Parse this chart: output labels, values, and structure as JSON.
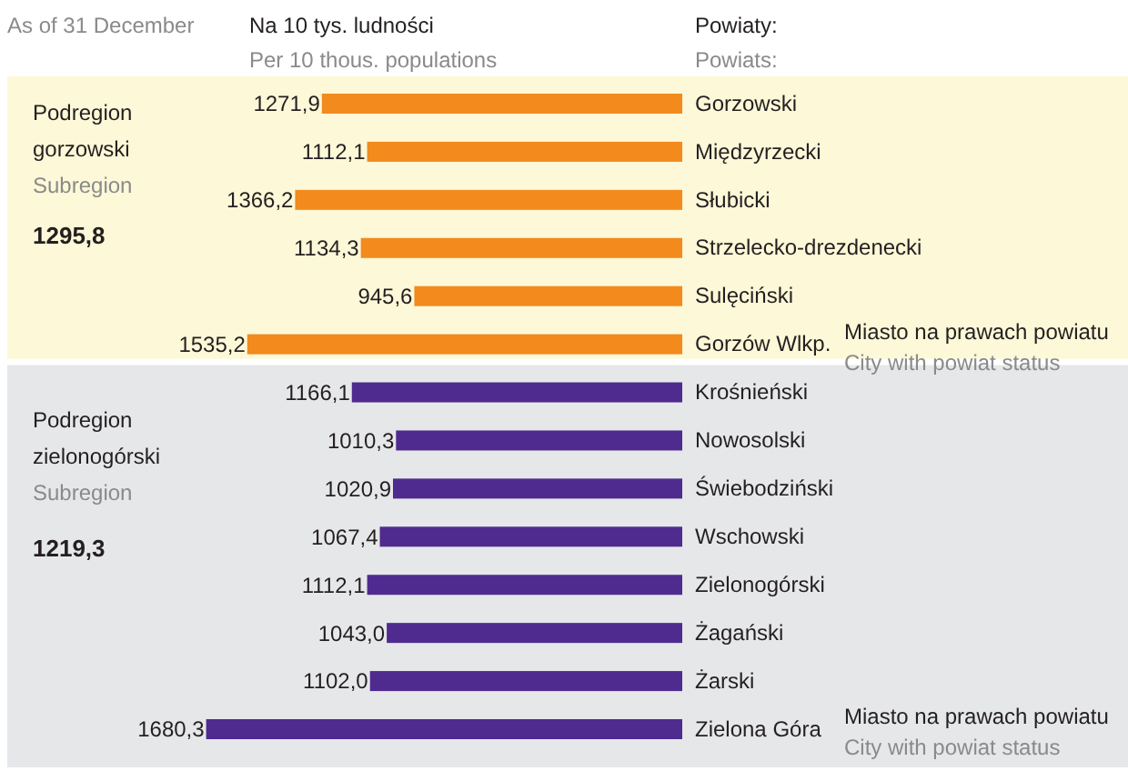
{
  "chart_data": {
    "type": "bar",
    "orientation": "horizontal",
    "xlabel": "Na 10 tys. ludności",
    "ylabel": "Powiaty:",
    "categories": [
      "Gorzowski",
      "Międzyrzecki",
      "Słubicki",
      "Strzelecko-drezdenecki",
      "Sulęciński",
      "Gorzów Wlkp.",
      "Krośnieński",
      "Nowosolski",
      "Świebodziński",
      "Wschowski",
      "Zielonogórski",
      "Żagański",
      "Żarski",
      "Zielona Góra"
    ],
    "values": [
      1271.9,
      1112.1,
      1366.2,
      1134.3,
      945.6,
      1535.2,
      1166.1,
      1010.3,
      1020.9,
      1067.4,
      1112.1,
      1043.0,
      1102.0,
      1680.3
    ],
    "value_labels": [
      "1271,9",
      "1112,1",
      "1366,2",
      "1134,3",
      "945,6",
      "1535,2",
      "1166,1",
      "1010,3",
      "1020,9",
      "1067,4",
      "1112,1",
      "1043,0",
      "1102,0",
      "1680,3"
    ],
    "colors": [
      "#f28a1d",
      "#f28a1d",
      "#f28a1d",
      "#f28a1d",
      "#f28a1d",
      "#f28a1d",
      "#4f2b8f",
      "#4f2b8f",
      "#4f2b8f",
      "#4f2b8f",
      "#4f2b8f",
      "#4f2b8f",
      "#4f2b8f",
      "#4f2b8f"
    ],
    "tick_labels": "y",
    "bands": [
      {
        "axis": "y",
        "from": "Gorzowski",
        "to": "Gorzów Wlkp.",
        "label": "Podregion gorzowski",
        "color": "#fdf8d7"
      },
      {
        "axis": "y",
        "from": "Krośnieński",
        "to": "Zielona Góra",
        "label": "Podregion zielonogórski",
        "color": "#e6e7e9"
      }
    ],
    "annotations": [
      "As of 31 December",
      "Per 10 thous. populations",
      "Powiats:",
      "Subregion",
      "1295,8",
      "Subregion",
      "1219,3",
      "Miasto na prawach powiatu",
      "City with powiat status",
      "Miasto na prawach powiatu",
      "City with powiat status"
    ]
  }
}
